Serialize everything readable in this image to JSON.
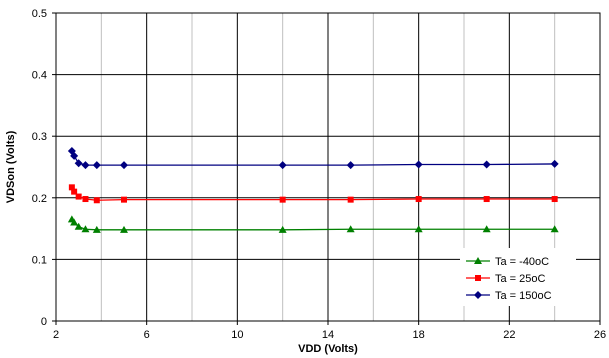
{
  "chart_data": {
    "type": "line",
    "xlabel": "VDD (Volts)",
    "ylabel": "VDSon (Volts)",
    "xlim": [
      2,
      26
    ],
    "ylim": [
      0,
      0.5
    ],
    "x_major_ticks": [
      2,
      6,
      10,
      14,
      18,
      22,
      26
    ],
    "x_minor_step": 2,
    "y_ticks": [
      0,
      0.1,
      0.2,
      0.3,
      0.4,
      0.5
    ],
    "y_tick_labels": [
      "0",
      "0.1",
      "0.2",
      "0.3",
      "0.4",
      "0.5"
    ],
    "grid": true,
    "legend_position": "bottom-right",
    "series": [
      {
        "name": "Ta = -40oC",
        "color": "#008000",
        "marker": "triangle",
        "x": [
          2.7,
          2.8,
          3.0,
          3.3,
          3.8,
          5.0,
          12,
          15,
          18,
          21,
          24
        ],
        "y": [
          0.165,
          0.16,
          0.153,
          0.149,
          0.148,
          0.148,
          0.148,
          0.149,
          0.149,
          0.149,
          0.149
        ]
      },
      {
        "name": "Ta = 25oC",
        "color": "#ff0000",
        "marker": "square",
        "x": [
          2.7,
          2.8,
          3.0,
          3.3,
          3.8,
          5.0,
          12,
          15,
          18,
          21,
          24
        ],
        "y": [
          0.217,
          0.21,
          0.202,
          0.198,
          0.196,
          0.197,
          0.197,
          0.197,
          0.198,
          0.198,
          0.198
        ]
      },
      {
        "name": "Ta = 150oC",
        "color": "#000080",
        "marker": "diamond",
        "x": [
          2.7,
          2.8,
          3.0,
          3.3,
          3.8,
          5.0,
          12,
          15,
          18,
          21,
          24
        ],
        "y": [
          0.276,
          0.268,
          0.256,
          0.253,
          0.253,
          0.253,
          0.253,
          0.253,
          0.254,
          0.254,
          0.255
        ]
      }
    ]
  }
}
